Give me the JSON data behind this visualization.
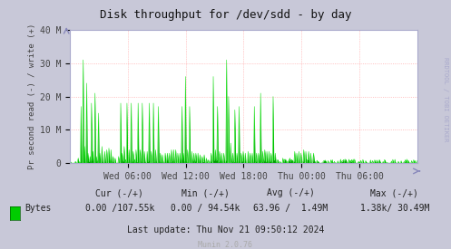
{
  "title": "Disk throughput for /dev/sdd - by day",
  "ylabel": "Pr second read (-) / write (+)",
  "background_color": "#c8c8d8",
  "plot_bg_color": "#ffffff",
  "grid_color": "#ff8888",
  "line_color": "#00e000",
  "fill_color": "#00a000",
  "border_color": "#aaaacc",
  "ylim": [
    0,
    40000000
  ],
  "yticks": [
    0,
    10000000,
    20000000,
    30000000,
    40000000
  ],
  "ytick_labels": [
    "0",
    "10 M",
    "20 M",
    "30 M",
    "40 M"
  ],
  "xlabel_ticks": [
    "Wed 06:00",
    "Wed 12:00",
    "Wed 18:00",
    "Thu 00:00",
    "Thu 06:00"
  ],
  "watermark": "RRDTOOL / TOBI OETIKER",
  "munin_version": "Munin 2.0.76",
  "legend_label": "Bytes",
  "legend_color": "#00cc00",
  "footer_cur": "Cur (-/+)",
  "footer_min": "Min (-/+)",
  "footer_avg": "Avg (-/+)",
  "footer_max": "Max (-/+)",
  "footer_cur_val": "0.00 /107.55k",
  "footer_min_val": "0.00 / 94.54k",
  "footer_avg_val": "63.96 /  1.49M",
  "footer_max_val": "1.38k/ 30.49M",
  "last_update": "Last update: Thu Nov 21 09:50:12 2024",
  "num_points": 500,
  "spike_data": [
    [
      12,
      1500000
    ],
    [
      16,
      17000000
    ],
    [
      19,
      31000000
    ],
    [
      21,
      5000000
    ],
    [
      24,
      24000000
    ],
    [
      26,
      3000000
    ],
    [
      29,
      2000000
    ],
    [
      31,
      18000000
    ],
    [
      33,
      3500000
    ],
    [
      36,
      21000000
    ],
    [
      38,
      2000000
    ],
    [
      41,
      15000000
    ],
    [
      43,
      3000000
    ],
    [
      46,
      5000000
    ],
    [
      50,
      3500000
    ],
    [
      53,
      4000000
    ],
    [
      56,
      4500000
    ],
    [
      59,
      4000000
    ],
    [
      62,
      2000000
    ],
    [
      65,
      1500000
    ],
    [
      70,
      2000000
    ],
    [
      73,
      18000000
    ],
    [
      75,
      3000000
    ],
    [
      78,
      5000000
    ],
    [
      82,
      18000000
    ],
    [
      85,
      4000000
    ],
    [
      88,
      18000000
    ],
    [
      91,
      3500000
    ],
    [
      95,
      4000000
    ],
    [
      98,
      18000000
    ],
    [
      101,
      4000000
    ],
    [
      104,
      18000000
    ],
    [
      107,
      3500000
    ],
    [
      111,
      3500000
    ],
    [
      114,
      18000000
    ],
    [
      117,
      3500000
    ],
    [
      120,
      18000000
    ],
    [
      123,
      4000000
    ],
    [
      127,
      17000000
    ],
    [
      130,
      3000000
    ],
    [
      133,
      2500000
    ],
    [
      137,
      3000000
    ],
    [
      140,
      3000000
    ],
    [
      143,
      3000000
    ],
    [
      146,
      4000000
    ],
    [
      149,
      4000000
    ],
    [
      152,
      4000000
    ],
    [
      155,
      3000000
    ],
    [
      158,
      3000000
    ],
    [
      161,
      17000000
    ],
    [
      163,
      3000000
    ],
    [
      166,
      26000000
    ],
    [
      169,
      4000000
    ],
    [
      172,
      17000000
    ],
    [
      175,
      3500000
    ],
    [
      178,
      3000000
    ],
    [
      181,
      3000000
    ],
    [
      184,
      3000000
    ],
    [
      187,
      2500000
    ],
    [
      190,
      2000000
    ],
    [
      193,
      2500000
    ],
    [
      196,
      1500000
    ],
    [
      199,
      1000000
    ],
    [
      203,
      3000000
    ],
    [
      206,
      26000000
    ],
    [
      209,
      4000000
    ],
    [
      212,
      17000000
    ],
    [
      215,
      3500000
    ],
    [
      218,
      3000000
    ],
    [
      221,
      3000000
    ],
    [
      225,
      31000000
    ],
    [
      228,
      20000000
    ],
    [
      231,
      6000000
    ],
    [
      234,
      3000000
    ],
    [
      237,
      16000000
    ],
    [
      240,
      3000000
    ],
    [
      243,
      17000000
    ],
    [
      246,
      3000000
    ],
    [
      249,
      3500000
    ],
    [
      252,
      3000000
    ],
    [
      256,
      3500000
    ],
    [
      259,
      3000000
    ],
    [
      262,
      3000000
    ],
    [
      265,
      17000000
    ],
    [
      268,
      3000000
    ],
    [
      271,
      3000000
    ],
    [
      274,
      21000000
    ],
    [
      277,
      3500000
    ],
    [
      280,
      4000000
    ],
    [
      283,
      3500000
    ],
    [
      286,
      3500000
    ],
    [
      289,
      3000000
    ],
    [
      292,
      20000000
    ],
    [
      295,
      3000000
    ],
    [
      299,
      1000000
    ],
    [
      302,
      500000
    ],
    [
      306,
      1500000
    ],
    [
      309,
      1000000
    ],
    [
      312,
      500000
    ],
    [
      316,
      1500000
    ],
    [
      319,
      1000000
    ],
    [
      323,
      3500000
    ],
    [
      326,
      3000000
    ],
    [
      329,
      3500000
    ],
    [
      332,
      3000000
    ],
    [
      336,
      4000000
    ],
    [
      339,
      3500000
    ],
    [
      343,
      3500000
    ],
    [
      346,
      3000000
    ],
    [
      350,
      3000000
    ]
  ]
}
